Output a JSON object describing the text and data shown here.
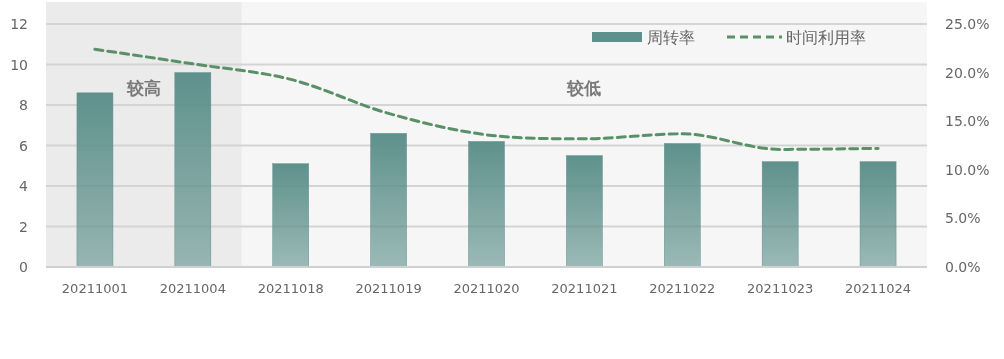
{
  "chart_data": {
    "type": "bar",
    "categories": [
      "20211001",
      "20211004",
      "20211018",
      "20211019",
      "20211020",
      "20211021",
      "20211022",
      "20211023",
      "20211024"
    ],
    "series": [
      {
        "name": "周转率",
        "color": "#5f918c",
        "values": [
          8.6,
          9.6,
          5.1,
          6.6,
          6.2,
          5.5,
          6.1,
          5.2,
          5.2
        ]
      },
      {
        "name": "时间利用率",
        "type": "line",
        "axis": "y2",
        "color": "#5a9068",
        "line_style": "dashed",
        "values": [
          22.4,
          20.9,
          19.3,
          15.8,
          13.6,
          13.2,
          13.7,
          12.1,
          12.2
        ]
      }
    ],
    "ylim": [
      0,
      12
    ],
    "yticks": [
      0,
      2,
      4,
      6,
      8,
      10,
      12
    ],
    "y2lim": [
      0,
      25
    ],
    "y2ticks": [
      {
        "value": 0,
        "label": "0.0%"
      },
      {
        "value": 5,
        "label": "5.0%"
      },
      {
        "value": 10,
        "label": "10.0%"
      },
      {
        "value": 15,
        "label": "15.0%"
      },
      {
        "value": 20,
        "label": "20.0%"
      },
      {
        "value": 25,
        "label": "25.0%"
      }
    ],
    "bands": [
      {
        "axis": "x",
        "from": "20211001",
        "to": "20211004",
        "label": "较高",
        "color": "#ebebeb"
      },
      {
        "axis": "x",
        "from": "20211018",
        "to": "20211024",
        "label": "较低",
        "color": "#f6f6f6"
      }
    ],
    "grid": "y",
    "legend": "top right"
  }
}
